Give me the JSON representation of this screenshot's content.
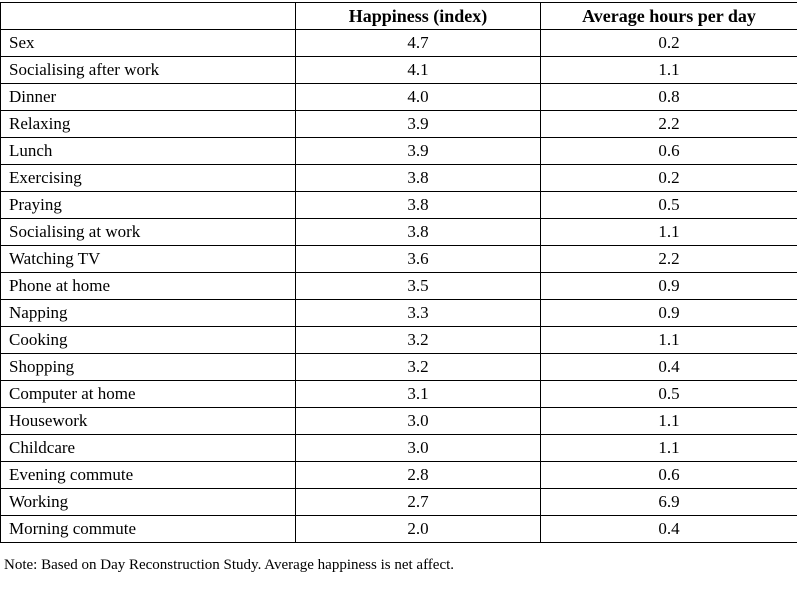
{
  "chart_data": {
    "type": "table",
    "columns": [
      "",
      "Happiness (index)",
      "Average hours per day"
    ],
    "rows": [
      [
        "Sex",
        "4.7",
        "0.2"
      ],
      [
        "Socialising after work",
        "4.1",
        "1.1"
      ],
      [
        "Dinner",
        "4.0",
        "0.8"
      ],
      [
        "Relaxing",
        "3.9",
        "2.2"
      ],
      [
        "Lunch",
        "3.9",
        "0.6"
      ],
      [
        "Exercising",
        "3.8",
        "0.2"
      ],
      [
        "Praying",
        "3.8",
        "0.5"
      ],
      [
        "Socialising at work",
        "3.8",
        "1.1"
      ],
      [
        "Watching TV",
        "3.6",
        "2.2"
      ],
      [
        "Phone at home",
        "3.5",
        "0.9"
      ],
      [
        "Napping",
        "3.3",
        "0.9"
      ],
      [
        "Cooking",
        "3.2",
        "1.1"
      ],
      [
        "Shopping",
        "3.2",
        "0.4"
      ],
      [
        "Computer at home",
        "3.1",
        "0.5"
      ],
      [
        "Housework",
        "3.0",
        "1.1"
      ],
      [
        "Childcare",
        "3.0",
        "1.1"
      ],
      [
        "Evening commute",
        "2.8",
        "0.6"
      ],
      [
        "Working",
        "2.7",
        "6.9"
      ],
      [
        "Morning commute",
        "2.0",
        "0.4"
      ]
    ]
  },
  "note": "Note: Based on Day Reconstruction Study.  Average happiness is net affect."
}
